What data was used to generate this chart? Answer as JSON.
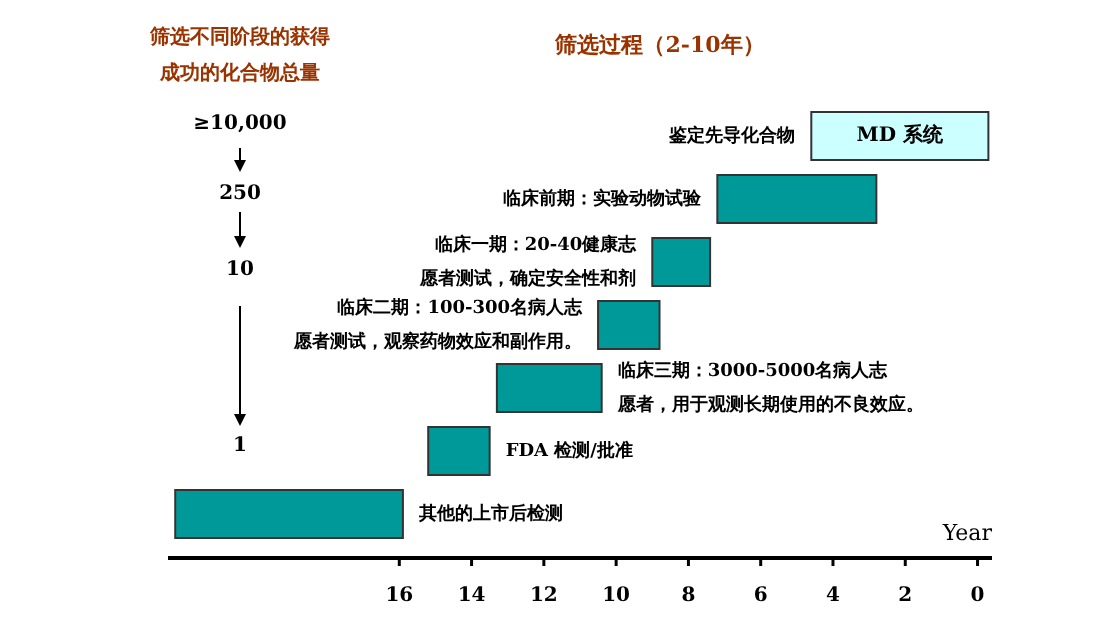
{
  "chart_data": {
    "type": "bar",
    "orientation": "horizontal",
    "title": "筛选过程（2-10年）",
    "xlabel": "Year",
    "categories": [
      "鉴定先导化合物",
      "临床前期：实验动物试验",
      "临床一期：20-40健康志愿者测试，确定安全性和剂",
      "临床二期：100-300名病人志愿者测试，观察药物效应和副作用。",
      "临床三期：3000-5000名病人志愿者，用于观测长期使用的不良效应。",
      "FDA 检测/批准",
      "其他的上市后检测"
    ],
    "base": [
      -0.3,
      2.8,
      7.4,
      8.8,
      10.4,
      13.5,
      15.9
    ],
    "values": [
      4.9,
      4.4,
      1.6,
      1.7,
      2.9,
      1.7,
      6.3
    ],
    "value_labels": [
      "MD 系统",
      null,
      null,
      null,
      null,
      null,
      null
    ],
    "colors": [
      "#ccffff",
      "#009999",
      "#009999",
      "#009999",
      "#009999",
      "#009999",
      "#009999"
    ],
    "xlim": [
      22.4,
      -0.4
    ],
    "xticks": [
      0,
      2,
      4,
      6,
      8,
      10,
      12,
      14,
      16
    ],
    "annotations": [
      "筛选不同阶段的获得成功的化合物总量",
      "≥10,000",
      "250",
      "10",
      "1"
    ]
  }
}
